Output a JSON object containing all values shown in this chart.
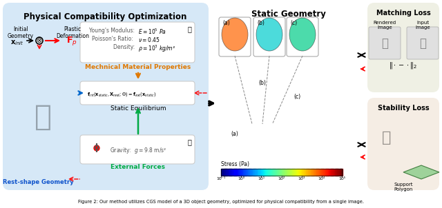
{
  "title": "Physical Compatibility Optimization",
  "static_geometry_title": "Static Geometry",
  "matching_loss_title": "Matching Loss",
  "stability_loss_title": "Stability Loss",
  "caption": "Figure 2: Our method utilizes CGS model of a 3D object geometry, optimized for physical compatibility from a single image.",
  "bg_left": "#dce8f5",
  "bg_right_top": "#f0f0e8",
  "bg_right_bottom": "#f5f0e8",
  "fig_width": 6.4,
  "fig_height": 3.02,
  "stress_colorbar_label": "Stress (Pa)",
  "stress_ticks": [
    "10⁻¹",
    "10⁰",
    "10¹",
    "10²",
    "10³",
    "10⁴",
    "10⁵"
  ],
  "material_text": "Young's Modulus:  E = 10⁵ Pa\nPoisson's Ratio:   ν = 0.45\nDensity:  ρ = 10³ kg/m³",
  "material_label": "Mechnical Material Properties",
  "equilibrium_eq": "fᵢₙₜ(xₛₜₐₜᵢᴄ, Xᵣₑₛₜ; Θ) = fₑₓₜ(xₛₜₐₜᵢᴄ)",
  "equilibrium_label": "Static Equilibrium",
  "gravity_text": "Gravity:  g = 9.8 m/s²",
  "ext_forces_label": "External Forces",
  "initial_geometry": "Initial\nGeometry",
  "plastic_deformation": "Plastic\nDeformation",
  "rest_shape": "Rest-shape Geometry",
  "x_init": "xᵢₙᵢₜ",
  "fp_label": "Fₚ",
  "rendered_image": "Rendered\nImage",
  "input_image": "Input\nImage",
  "support_polygon": "Support\nPolygon",
  "abc_labels": [
    "(a)",
    "(b)",
    "(c)"
  ],
  "colorbar_colors": [
    "#4400aa",
    "#0000ff",
    "#00aaff",
    "#00ffff",
    "#00ff88",
    "#88ff00",
    "#ffff00",
    "#ffaa00",
    "#ff4400",
    "#cc0000"
  ]
}
